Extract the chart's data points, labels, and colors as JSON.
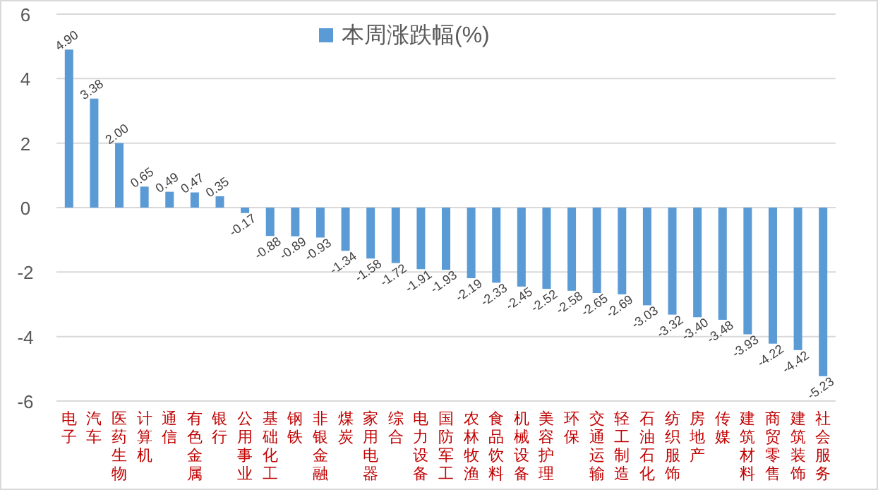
{
  "chart_data": {
    "type": "bar",
    "categories": [
      "电子",
      "汽车",
      "医药生物",
      "计算机",
      "通信",
      "有色金属",
      "银行",
      "公用事业",
      "基础化工",
      "钢铁",
      "非银金融",
      "煤炭",
      "家用电器",
      "综合",
      "电力设备",
      "国防军工",
      "农林牧渔",
      "食品饮料",
      "机械设备",
      "美容护理",
      "环保",
      "交通运输",
      "轻工制造",
      "石油石化",
      "纺织服饰",
      "房地产",
      "传媒",
      "建筑材料",
      "商贸零售",
      "建筑装饰",
      "社会服务"
    ],
    "series": [
      {
        "name": "本周涨跌幅(%)",
        "color": "#5b9bd5",
        "values": [
          4.9,
          3.38,
          2.0,
          0.65,
          0.49,
          0.47,
          0.35,
          -0.17,
          -0.88,
          -0.89,
          -0.93,
          -1.34,
          -1.58,
          -1.72,
          -1.91,
          -1.93,
          -2.19,
          -2.33,
          -2.45,
          -2.52,
          -2.58,
          -2.65,
          -2.69,
          -3.03,
          -3.32,
          -3.4,
          -3.48,
          -3.93,
          -4.22,
          -4.42,
          -5.23
        ]
      }
    ],
    "ylim": [
      -6,
      6
    ],
    "yticks": [
      -6,
      -4,
      -2,
      0,
      2,
      4,
      6
    ],
    "value_labels": [
      "4.90",
      "3.38",
      "2.00",
      "0.65",
      "0.49",
      "0.47",
      "0.35",
      "-0.17",
      "-0.88",
      "-0.89",
      "-0.93",
      "-1.34",
      "-1.58",
      "-1.72",
      "-1.91",
      "-1.93",
      "-2.19",
      "-2.33",
      "-2.45",
      "-2.52",
      "-2.58",
      "-2.65",
      "-2.69",
      "-3.03",
      "-3.32",
      "-3.40",
      "-3.48",
      "-3.93",
      "-4.22",
      "-4.42",
      "-5.23"
    ],
    "grid": "y",
    "legend": "top"
  }
}
